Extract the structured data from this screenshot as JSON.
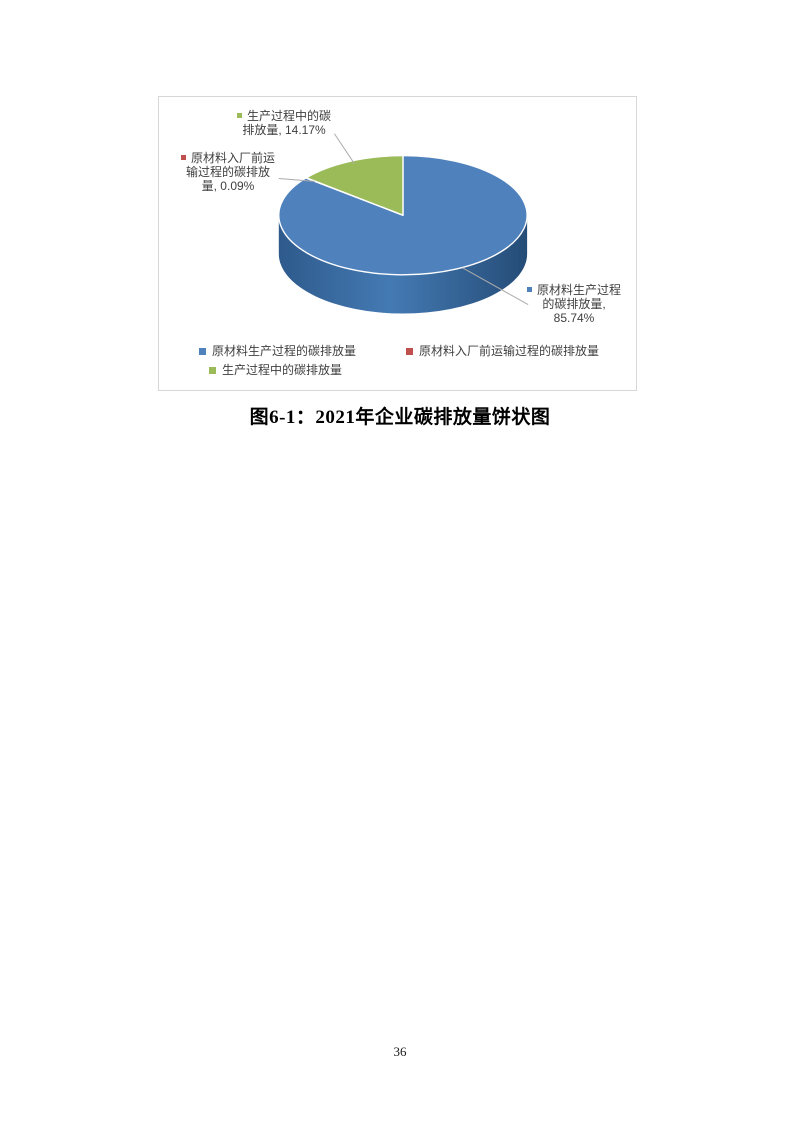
{
  "page": {
    "number": "36"
  },
  "figure": {
    "caption": "图6-1：2021年企业碳排放量饼状图"
  },
  "chart_data": {
    "type": "pie",
    "effect": "3d",
    "start_angle_deg": -90,
    "direction": "clockwise",
    "legend_position": "bottom",
    "slices": [
      {
        "name": "原材料生产过程的碳排放量",
        "value": 85.74,
        "color": "#4F81BD",
        "label_lines": [
          "原材料生产过程",
          "的碳排放量,",
          "85.74%"
        ]
      },
      {
        "name": "原材料入厂前运输过程的碳排放量",
        "value": 0.09,
        "color": "#C0504D",
        "label_lines": [
          "原材料入厂前运",
          "输过程的碳排放",
          "量, 0.09%"
        ]
      },
      {
        "name": "生产过程中的碳排放量",
        "value": 14.17,
        "color": "#9BBB59",
        "label_lines": [
          "生产过程中的碳",
          "排放量, 14.17%"
        ]
      }
    ],
    "side_gradient": [
      "#2E5A8C",
      "#447AB3",
      "#254C77"
    ]
  }
}
